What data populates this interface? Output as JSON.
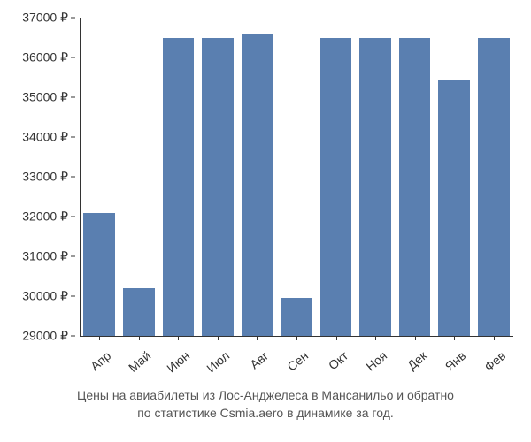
{
  "chart": {
    "type": "bar",
    "categories": [
      "Апр",
      "Май",
      "Июн",
      "Июл",
      "Авг",
      "Сен",
      "Окт",
      "Ноя",
      "Дек",
      "Янв",
      "Фев"
    ],
    "values": [
      32100,
      30200,
      36500,
      36500,
      36600,
      29950,
      36500,
      36500,
      36500,
      35450,
      36500
    ],
    "bar_color": "#5a7fb0",
    "ylim": [
      29000,
      37000
    ],
    "yticks": [
      29000,
      30000,
      31000,
      32000,
      33000,
      34000,
      35000,
      36000,
      37000
    ],
    "ytick_labels": [
      "29000 ₽",
      "30000 ₽",
      "31000 ₽",
      "32000 ₽",
      "33000 ₽",
      "34000 ₽",
      "35000 ₽",
      "36000 ₽",
      "37000 ₽"
    ],
    "currency_symbol": "₽",
    "background_color": "#ffffff",
    "axis_color": "#333333",
    "label_fontsize": 14,
    "bar_width_ratio": 0.8,
    "x_label_rotation": -40
  },
  "caption": {
    "line1": "Цены на авиабилеты из Лос-Анджелеса в Мансанильо и обратно",
    "line2": "по статистике Csmia.aero в динамике за год.",
    "color": "#555555",
    "fontsize": 14
  }
}
